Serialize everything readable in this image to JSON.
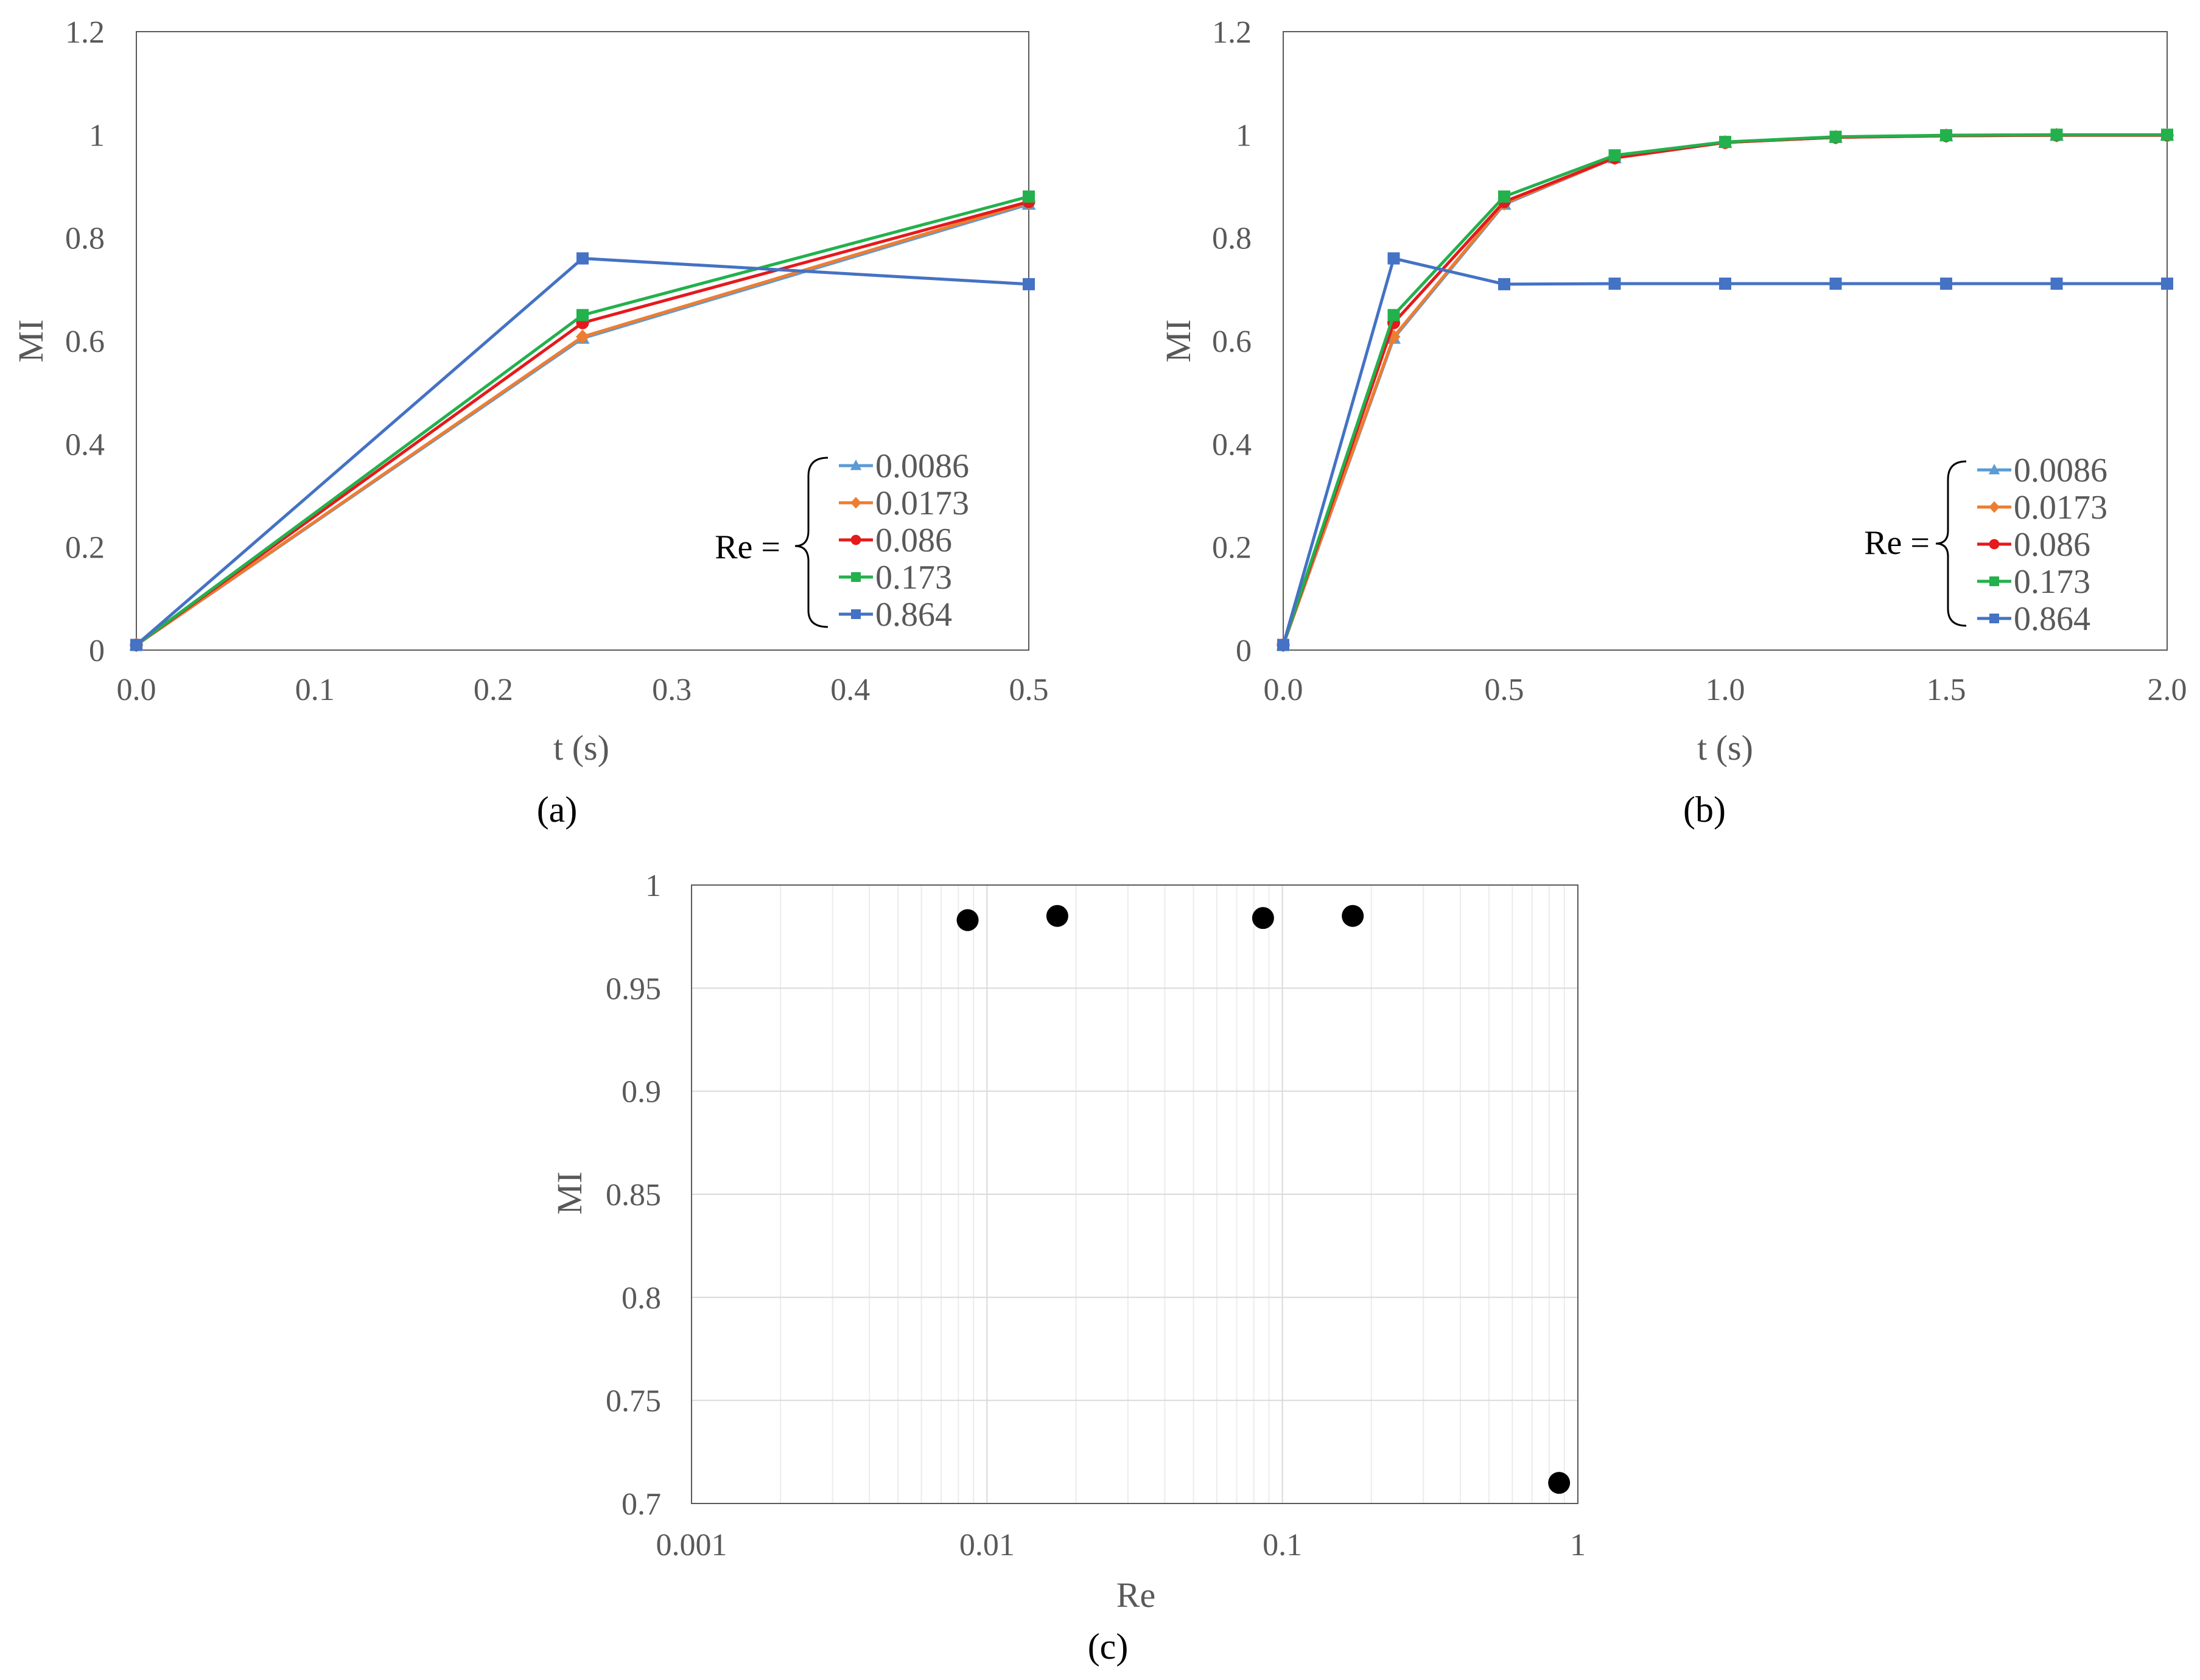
{
  "chart_data": [
    {
      "id": "a",
      "type": "line",
      "caption": "(a)",
      "xlabel": "t (s)",
      "ylabel": "MI",
      "xlim": [
        0,
        0.5
      ],
      "ylim": [
        0,
        1.2
      ],
      "xticks": [
        "0.0",
        "0.1",
        "0.2",
        "0.3",
        "0.4",
        "0.5"
      ],
      "xtick_values": [
        0,
        0.1,
        0.2,
        0.3,
        0.4,
        0.5
      ],
      "yticks": [
        "0",
        "0.2",
        "0.4",
        "0.6",
        "0.8",
        "1",
        "1.2"
      ],
      "ytick_values": [
        0,
        0.2,
        0.4,
        0.6,
        0.8,
        1.0,
        1.2
      ],
      "legend_prefix": "Re =",
      "legend_position": "bottom-right",
      "x": [
        0,
        0.25,
        0.5
      ],
      "series": [
        {
          "name": "0.0086",
          "color": "#5B9BD5",
          "marker": "triangle",
          "values": [
            0.01,
            0.605,
            0.865
          ]
        },
        {
          "name": "0.0173",
          "color": "#ED7D31",
          "marker": "diamond",
          "values": [
            0.01,
            0.608,
            0.868
          ]
        },
        {
          "name": "0.086",
          "color": "#E41A1C",
          "marker": "circle",
          "values": [
            0.01,
            0.635,
            0.87
          ]
        },
        {
          "name": "0.173",
          "color": "#22B14C",
          "marker": "square",
          "values": [
            0.01,
            0.65,
            0.88
          ]
        },
        {
          "name": "0.864",
          "color": "#4472C4",
          "marker": "square",
          "values": [
            0.01,
            0.76,
            0.71
          ]
        }
      ]
    },
    {
      "id": "b",
      "type": "line",
      "caption": "(b)",
      "xlabel": "t (s)",
      "ylabel": "MI",
      "xlim": [
        0,
        2.0
      ],
      "ylim": [
        0,
        1.2
      ],
      "xticks": [
        "0.0",
        "0.5",
        "1.0",
        "1.5",
        "2.0"
      ],
      "xtick_values": [
        0,
        0.5,
        1.0,
        1.5,
        2.0
      ],
      "yticks": [
        "0",
        "0.2",
        "0.4",
        "0.6",
        "0.8",
        "1",
        "1.2"
      ],
      "ytick_values": [
        0,
        0.2,
        0.4,
        0.6,
        0.8,
        1.0,
        1.2
      ],
      "legend_prefix": "Re =",
      "legend_position": "bottom-right",
      "x": [
        0,
        0.25,
        0.5,
        0.75,
        1.0,
        1.25,
        1.5,
        1.75,
        2.0
      ],
      "series": [
        {
          "name": "0.0086",
          "color": "#5B9BD5",
          "marker": "triangle",
          "values": [
            0.01,
            0.605,
            0.865,
            0.955,
            0.985,
            0.995,
            0.998,
            0.999,
            0.999
          ]
        },
        {
          "name": "0.0173",
          "color": "#ED7D31",
          "marker": "diamond",
          "values": [
            0.01,
            0.608,
            0.867,
            0.955,
            0.985,
            0.995,
            0.998,
            0.999,
            0.999
          ]
        },
        {
          "name": "0.086",
          "color": "#E41A1C",
          "marker": "circle",
          "values": [
            0.01,
            0.635,
            0.87,
            0.955,
            0.985,
            0.995,
            0.998,
            0.999,
            0.999
          ]
        },
        {
          "name": "0.173",
          "color": "#22B14C",
          "marker": "square",
          "values": [
            0.01,
            0.65,
            0.88,
            0.96,
            0.986,
            0.996,
            0.999,
            1.0,
            1.0
          ]
        },
        {
          "name": "0.864",
          "color": "#4472C4",
          "marker": "square",
          "values": [
            0.01,
            0.76,
            0.71,
            0.711,
            0.711,
            0.711,
            0.711,
            0.711,
            0.711
          ]
        }
      ]
    },
    {
      "id": "c",
      "type": "scatter",
      "caption": "(c)",
      "xlabel": "Re",
      "ylabel": "MI",
      "xscale": "log",
      "xlim": [
        0.001,
        1
      ],
      "ylim": [
        0.7,
        1.0
      ],
      "xticks": [
        "0.001",
        "0.01",
        "0.1",
        "1"
      ],
      "xtick_values": [
        0.001,
        0.01,
        0.1,
        1
      ],
      "yticks": [
        "0.7",
        "0.75",
        "0.8",
        "0.85",
        "0.9",
        "0.95",
        "1"
      ],
      "ytick_values": [
        0.7,
        0.75,
        0.8,
        0.85,
        0.9,
        0.95,
        1.0
      ],
      "grid": true,
      "marker_color": "#000000",
      "points": [
        {
          "x": 0.0086,
          "y": 0.983
        },
        {
          "x": 0.0173,
          "y": 0.985
        },
        {
          "x": 0.086,
          "y": 0.984
        },
        {
          "x": 0.173,
          "y": 0.985
        },
        {
          "x": 0.864,
          "y": 0.71
        }
      ]
    }
  ]
}
